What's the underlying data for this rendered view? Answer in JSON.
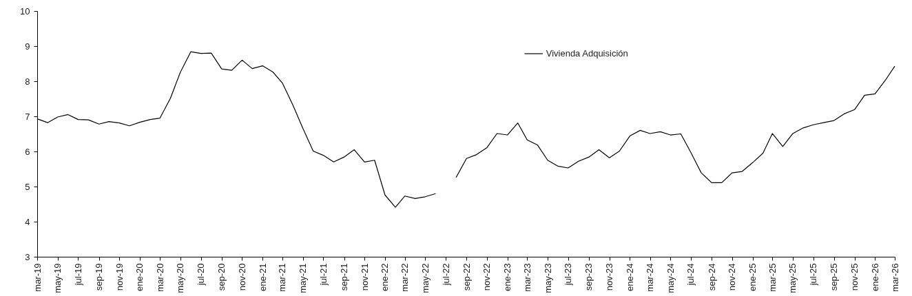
{
  "chart_data": {
    "type": "line",
    "x": [
      "2019-03",
      "2019-04",
      "2019-05",
      "2019-06",
      "2019-07",
      "2019-08",
      "2019-09",
      "2019-10",
      "2019-11",
      "2019-12",
      "2020-01",
      "2020-02",
      "2020-03",
      "2020-04",
      "2020-05",
      "2020-06",
      "2020-07",
      "2020-08",
      "2020-09",
      "2020-10",
      "2020-11",
      "2020-12",
      "2021-01",
      "2021-02",
      "2021-03",
      "2021-04",
      "2021-05",
      "2021-06",
      "2021-07",
      "2021-08",
      "2021-09",
      "2021-10",
      "2021-11",
      "2021-12",
      "2022-01",
      "2022-02",
      "2022-03",
      "2022-04",
      "2022-05",
      "2022-06",
      "2022-07",
      "2022-08",
      "2022-09",
      "2022-10",
      "2022-11",
      "2022-12",
      "2023-01",
      "2023-02",
      "2023-03",
      "2023-04",
      "2023-05",
      "2023-06",
      "2023-07",
      "2023-08",
      "2023-09",
      "2023-10",
      "2023-11",
      "2023-12",
      "2024-01",
      "2024-02",
      "2024-03",
      "2024-04",
      "2024-05",
      "2024-06",
      "2024-07",
      "2024-08",
      "2024-09",
      "2024-10",
      "2024-11",
      "2024-12",
      "2025-01",
      "2025-02",
      "2025-03",
      "2025-04",
      "2025-05",
      "2025-06",
      "2025-07",
      "2025-08",
      "2025-09",
      "2025-10",
      "2025-11",
      "2025-12",
      "2026-01",
      "2026-02",
      "2026-03"
    ],
    "series": [
      {
        "name": "Vivienda Adquisición",
        "color": "#000000",
        "values": [
          6.93,
          6.82,
          6.98,
          7.05,
          6.91,
          6.9,
          6.78,
          6.85,
          6.81,
          6.73,
          6.83,
          6.91,
          6.95,
          7.51,
          8.26,
          8.84,
          8.79,
          8.8,
          8.35,
          8.31,
          8.6,
          8.36,
          8.44,
          8.26,
          7.95,
          7.33,
          6.66,
          6.01,
          5.89,
          5.7,
          5.84,
          6.05,
          5.7,
          5.75,
          4.76,
          4.41,
          4.73,
          4.66,
          4.71,
          4.8,
          null,
          5.26,
          5.8,
          5.91,
          6.11,
          6.51,
          6.47,
          6.81,
          6.33,
          6.18,
          5.75,
          5.58,
          5.53,
          5.72,
          5.84,
          6.05,
          5.82,
          6.01,
          6.44,
          6.6,
          6.51,
          6.56,
          6.47,
          6.5,
          5.97,
          5.39,
          5.11,
          5.11,
          5.39,
          5.43,
          5.68,
          5.95,
          6.51,
          6.14,
          6.51,
          6.67,
          6.76,
          6.82,
          6.88,
          7.07,
          7.19,
          7.6,
          7.64,
          8.03,
          8.43
        ]
      }
    ],
    "xlim": [
      "2019-03",
      "2026-03"
    ],
    "xticks": [
      {
        "value": "2019-03",
        "label": "mar-19"
      },
      {
        "value": "2019-05",
        "label": "may-19"
      },
      {
        "value": "2019-07",
        "label": "jul-19"
      },
      {
        "value": "2019-09",
        "label": "sep-19"
      },
      {
        "value": "2019-11",
        "label": "nov-19"
      },
      {
        "value": "2020-01",
        "label": "ene-20"
      },
      {
        "value": "2020-03",
        "label": "mar-20"
      },
      {
        "value": "2020-05",
        "label": "may-20"
      },
      {
        "value": "2020-07",
        "label": "jul-20"
      },
      {
        "value": "2020-09",
        "label": "sep-20"
      },
      {
        "value": "2020-11",
        "label": "nov-20"
      },
      {
        "value": "2021-01",
        "label": "ene-21"
      },
      {
        "value": "2021-03",
        "label": "mar-21"
      },
      {
        "value": "2021-05",
        "label": "may-21"
      },
      {
        "value": "2021-07",
        "label": "jul-21"
      },
      {
        "value": "2021-09",
        "label": "sep-21"
      },
      {
        "value": "2021-11",
        "label": "nov-21"
      },
      {
        "value": "2022-01",
        "label": "ene-22"
      },
      {
        "value": "2022-03",
        "label": "mar-22"
      },
      {
        "value": "2022-05",
        "label": "may-22"
      },
      {
        "value": "2022-07",
        "label": "jul-22"
      },
      {
        "value": "2022-09",
        "label": "sep-22"
      },
      {
        "value": "2022-11",
        "label": "nov-22"
      },
      {
        "value": "2023-01",
        "label": "ene-23"
      },
      {
        "value": "2023-03",
        "label": "mar-23"
      },
      {
        "value": "2023-05",
        "label": "may-23"
      },
      {
        "value": "2023-07",
        "label": "jul-23"
      },
      {
        "value": "2023-09",
        "label": "sep-23"
      },
      {
        "value": "2023-11",
        "label": "nov-23"
      },
      {
        "value": "2024-01",
        "label": "ene-24"
      },
      {
        "value": "2024-03",
        "label": "mar-24"
      },
      {
        "value": "2024-05",
        "label": "may-24"
      },
      {
        "value": "2024-07",
        "label": "jul-24"
      },
      {
        "value": "2024-09",
        "label": "sep-24"
      },
      {
        "value": "2024-11",
        "label": "nov-24"
      },
      {
        "value": "2025-01",
        "label": "ene-25"
      },
      {
        "value": "2025-03",
        "label": "mar-25"
      },
      {
        "value": "2025-05",
        "label": "may-25"
      },
      {
        "value": "2025-07",
        "label": "jul-25"
      },
      {
        "value": "2025-09",
        "label": "sep-25"
      },
      {
        "value": "2025-11",
        "label": "nov-25"
      },
      {
        "value": "2026-01",
        "label": "ene-26"
      },
      {
        "value": "2026-03",
        "label": "mar-26"
      }
    ],
    "ylim": [
      3,
      10
    ],
    "yticks": [
      3,
      4,
      5,
      6,
      7,
      8,
      9,
      10
    ],
    "legend": "top right",
    "grid": false,
    "marker": "none",
    "line_style": "solid"
  }
}
